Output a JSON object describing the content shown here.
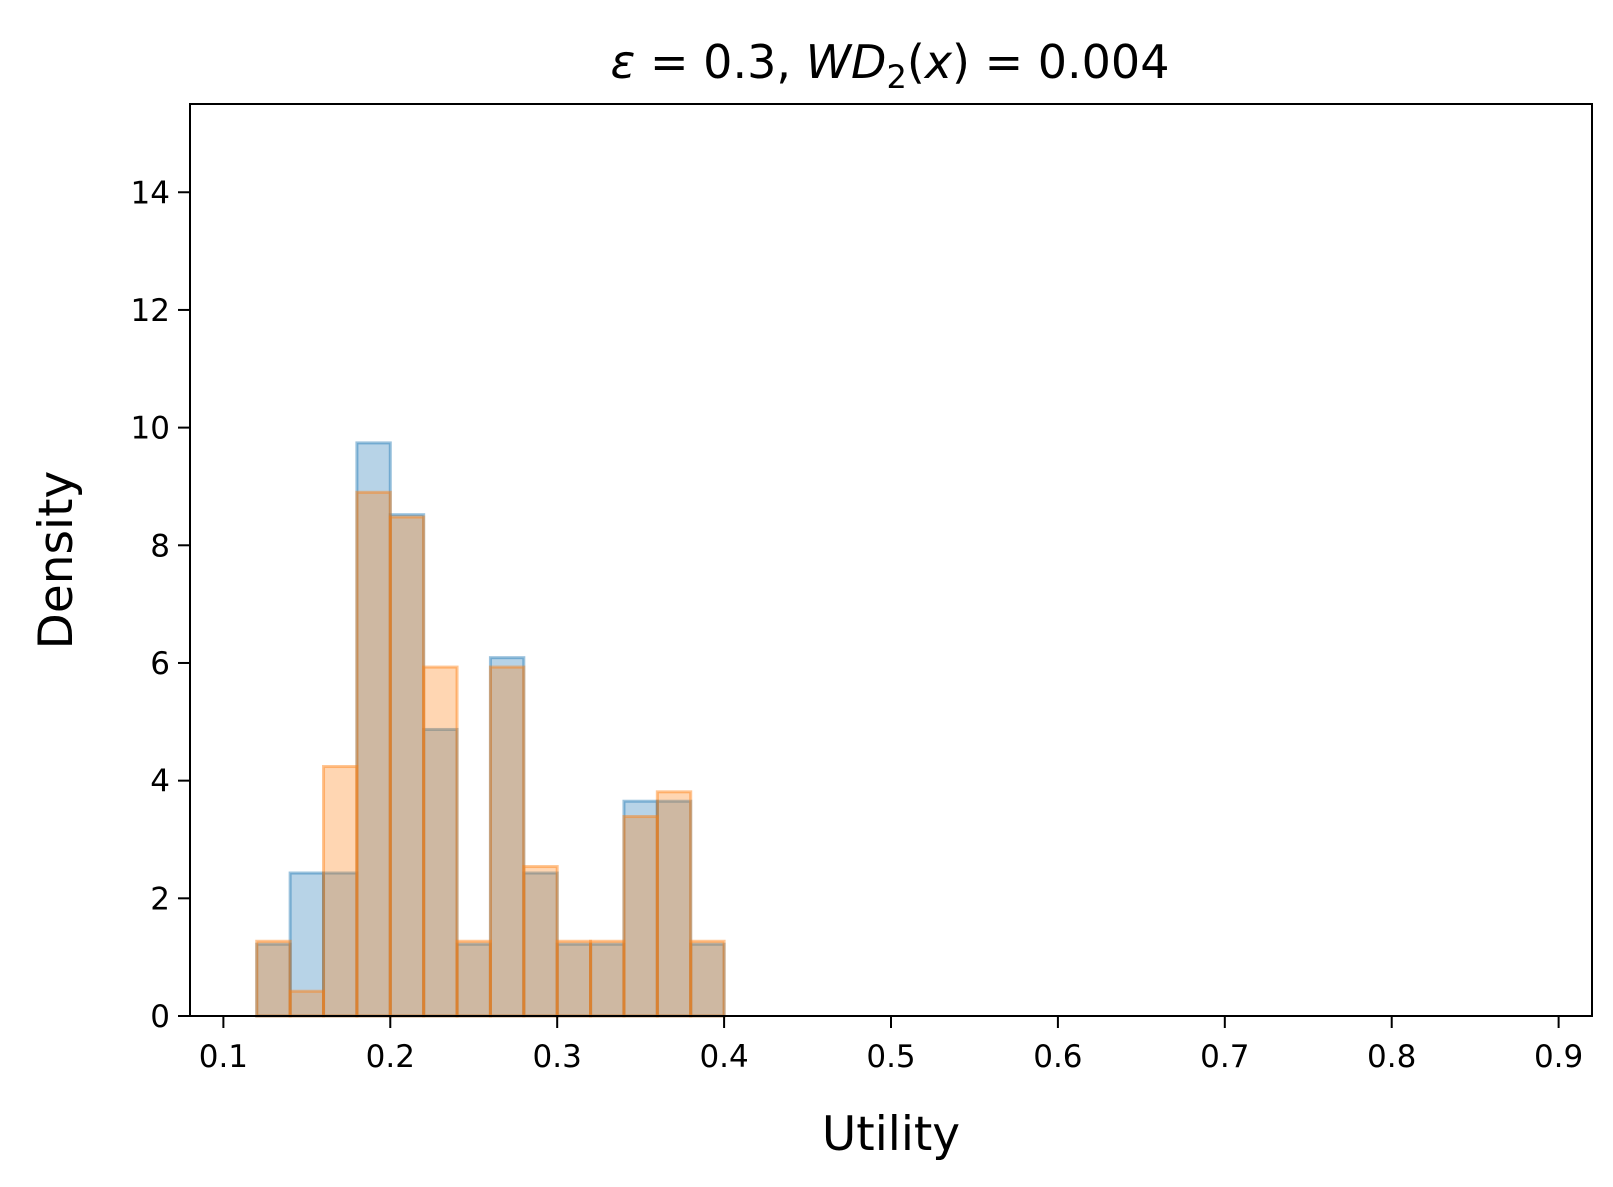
{
  "chart_data": {
    "type": "bar",
    "subtype": "overlaid-histogram",
    "title": {
      "symbol": "ε",
      "eq1": " = 0.3, ",
      "wd_prefix": "WD",
      "wd_sub": "2",
      "paren_open": "(",
      "var": "x",
      "paren_close": ")",
      "eq2": " = 0.004"
    },
    "xlabel": "Utility",
    "ylabel": "Density",
    "xlim": [
      0.08,
      0.92
    ],
    "ylim": [
      0,
      15.5
    ],
    "x_ticks": [
      0.1,
      0.2,
      0.3,
      0.4,
      0.5,
      0.6,
      0.7,
      0.8,
      0.9
    ],
    "x_tick_labels": [
      "0.1",
      "0.2",
      "0.3",
      "0.4",
      "0.5",
      "0.6",
      "0.7",
      "0.8",
      "0.9"
    ],
    "y_ticks": [
      0,
      2,
      4,
      6,
      8,
      10,
      12,
      14
    ],
    "y_tick_labels": [
      "0",
      "2",
      "4",
      "6",
      "8",
      "10",
      "12",
      "14"
    ],
    "grid": false,
    "legend": "none",
    "bin_edges": [
      0.1,
      0.12,
      0.14,
      0.16,
      0.18,
      0.2,
      0.22,
      0.24,
      0.26,
      0.28,
      0.3,
      0.32,
      0.34,
      0.36,
      0.38,
      0.4
    ],
    "series": [
      {
        "color": "#1f77b4",
        "values": [
          0,
          1.22,
          2.43,
          2.43,
          9.74,
          8.52,
          4.87,
          1.22,
          6.09,
          2.43,
          1.22,
          1.22,
          3.65,
          3.65,
          1.22
        ]
      },
      {
        "color": "#ff7f0e",
        "values": [
          0,
          1.27,
          0.42,
          4.24,
          8.9,
          8.48,
          5.93,
          1.27,
          5.93,
          2.54,
          1.27,
          1.27,
          3.39,
          3.81,
          1.27
        ]
      }
    ]
  }
}
